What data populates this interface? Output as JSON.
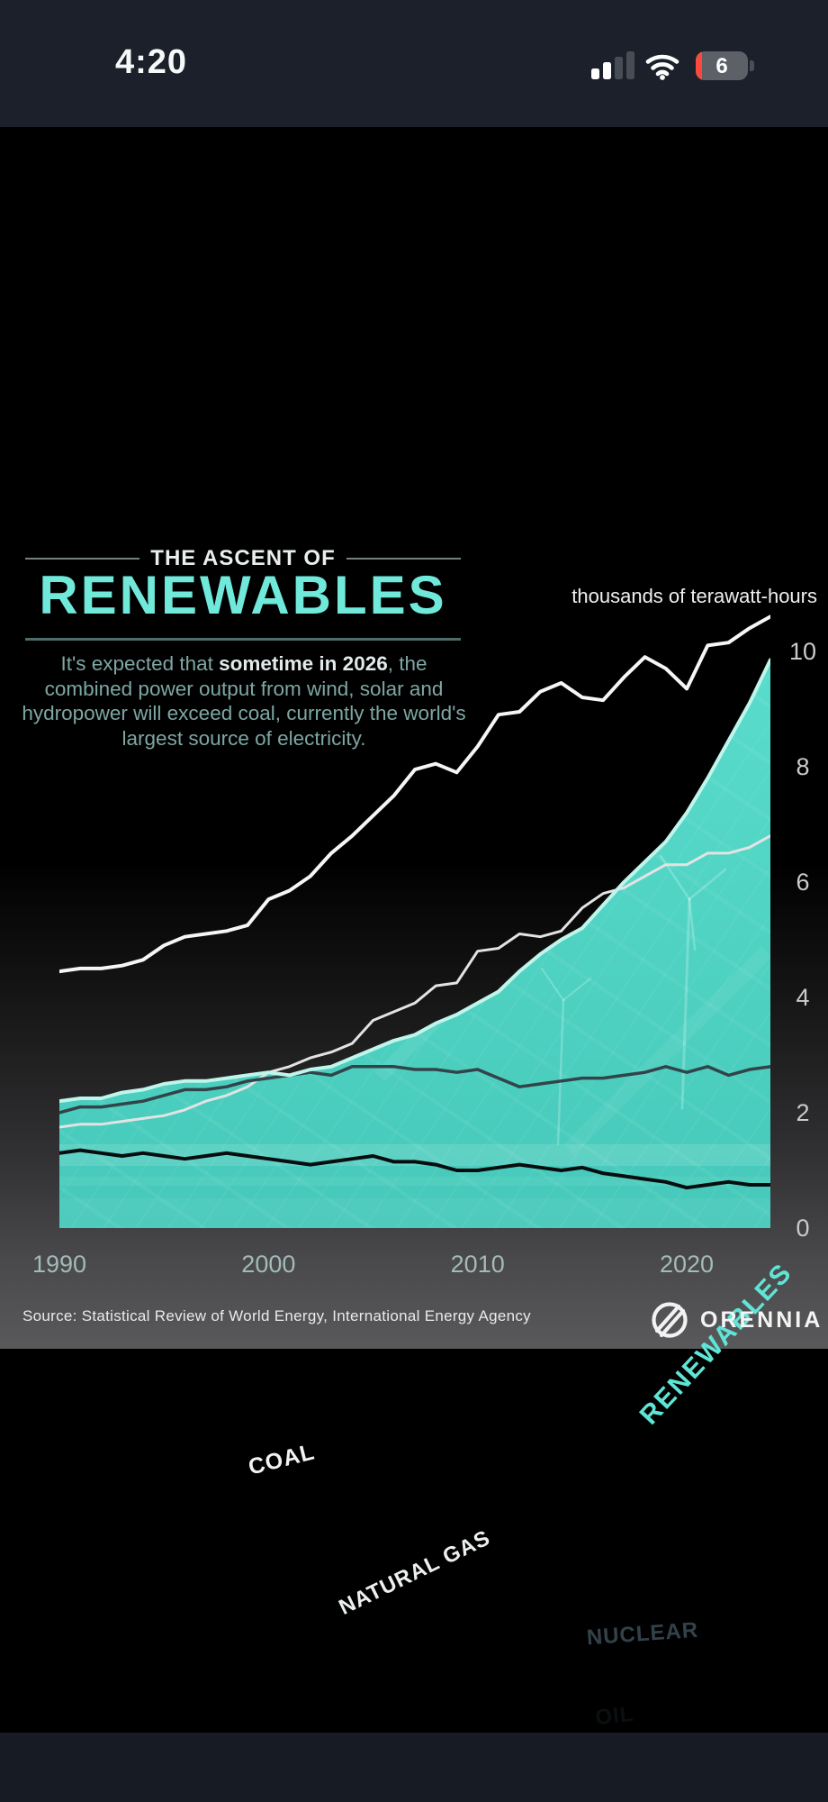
{
  "status_bar": {
    "time": "4:20",
    "battery_level": "6"
  },
  "header": {
    "kicker": "THE ASCENT OF",
    "title": "RENEWABLES",
    "desc_pre": "It's expected that ",
    "desc_bold": "sometime in 2026",
    "desc_post": ", the combined power output from wind, solar and hydropower will exceed coal, currently the world's largest source of electricity."
  },
  "chart_data": {
    "type": "combo-area-line",
    "unit_label": "thousands of terawatt-hours",
    "x": [
      1990,
      1991,
      1992,
      1993,
      1994,
      1995,
      1996,
      1997,
      1998,
      1999,
      2000,
      2001,
      2002,
      2003,
      2004,
      2005,
      2006,
      2007,
      2008,
      2009,
      2010,
      2011,
      2012,
      2013,
      2014,
      2015,
      2016,
      2017,
      2018,
      2019,
      2020,
      2021,
      2022,
      2023,
      2024
    ],
    "x_ticks": [
      1990,
      2000,
      2010,
      2020
    ],
    "y_ticks": [
      0,
      2,
      4,
      6,
      8,
      10
    ],
    "ylim": [
      0,
      11.45
    ],
    "legend_position": "inline-labels",
    "grid": false,
    "series": [
      {
        "name": "COAL",
        "type": "line",
        "color": "#f6f6f6",
        "values": [
          4.45,
          4.5,
          4.5,
          4.55,
          4.65,
          4.9,
          5.05,
          5.1,
          5.15,
          5.25,
          5.7,
          5.85,
          6.1,
          6.5,
          6.8,
          7.15,
          7.5,
          7.95,
          8.05,
          7.9,
          8.35,
          8.9,
          8.95,
          9.3,
          9.45,
          9.2,
          9.15,
          9.55,
          9.9,
          9.7,
          9.35,
          10.1,
          10.15,
          10.4,
          10.6
        ]
      },
      {
        "name": "RENEWABLES",
        "type": "area",
        "color": "#4ccdbe",
        "edge_color": "#bff5eb",
        "label_color": "#5fe5d5",
        "values": [
          2.2,
          2.25,
          2.25,
          2.35,
          2.4,
          2.5,
          2.55,
          2.55,
          2.6,
          2.65,
          2.7,
          2.65,
          2.75,
          2.8,
          2.95,
          3.1,
          3.25,
          3.35,
          3.55,
          3.7,
          3.9,
          4.1,
          4.45,
          4.75,
          5.0,
          5.2,
          5.6,
          6.0,
          6.35,
          6.7,
          7.2,
          7.8,
          8.45,
          9.1,
          9.85
        ]
      },
      {
        "name": "NATURAL GAS",
        "type": "line",
        "color": "#e3e3e3",
        "values": [
          1.75,
          1.8,
          1.8,
          1.85,
          1.9,
          1.95,
          2.05,
          2.2,
          2.3,
          2.45,
          2.7,
          2.8,
          2.95,
          3.05,
          3.2,
          3.6,
          3.75,
          3.9,
          4.2,
          4.25,
          4.8,
          4.85,
          5.1,
          5.05,
          5.15,
          5.55,
          5.8,
          5.9,
          6.1,
          6.3,
          6.3,
          6.5,
          6.5,
          6.6,
          6.8
        ]
      },
      {
        "name": "NUCLEAR",
        "type": "line",
        "color": "#324349",
        "values": [
          2.0,
          2.1,
          2.1,
          2.15,
          2.2,
          2.3,
          2.4,
          2.4,
          2.45,
          2.55,
          2.6,
          2.65,
          2.7,
          2.65,
          2.8,
          2.8,
          2.8,
          2.75,
          2.75,
          2.7,
          2.75,
          2.6,
          2.45,
          2.5,
          2.55,
          2.6,
          2.6,
          2.65,
          2.7,
          2.8,
          2.7,
          2.8,
          2.65,
          2.75,
          2.8
        ]
      },
      {
        "name": "OIL",
        "type": "line",
        "color": "#070d0e",
        "values": [
          1.3,
          1.35,
          1.3,
          1.25,
          1.3,
          1.25,
          1.2,
          1.25,
          1.3,
          1.25,
          1.2,
          1.15,
          1.1,
          1.15,
          1.2,
          1.25,
          1.15,
          1.15,
          1.1,
          1.0,
          1.0,
          1.05,
          1.1,
          1.05,
          1.0,
          1.05,
          0.95,
          0.9,
          0.85,
          0.8,
          0.7,
          0.75,
          0.8,
          0.75,
          0.75
        ]
      }
    ]
  },
  "footer": {
    "source": "Source: Statistical Review of World Energy, International Energy Agency",
    "brand": "ORENNIA"
  }
}
